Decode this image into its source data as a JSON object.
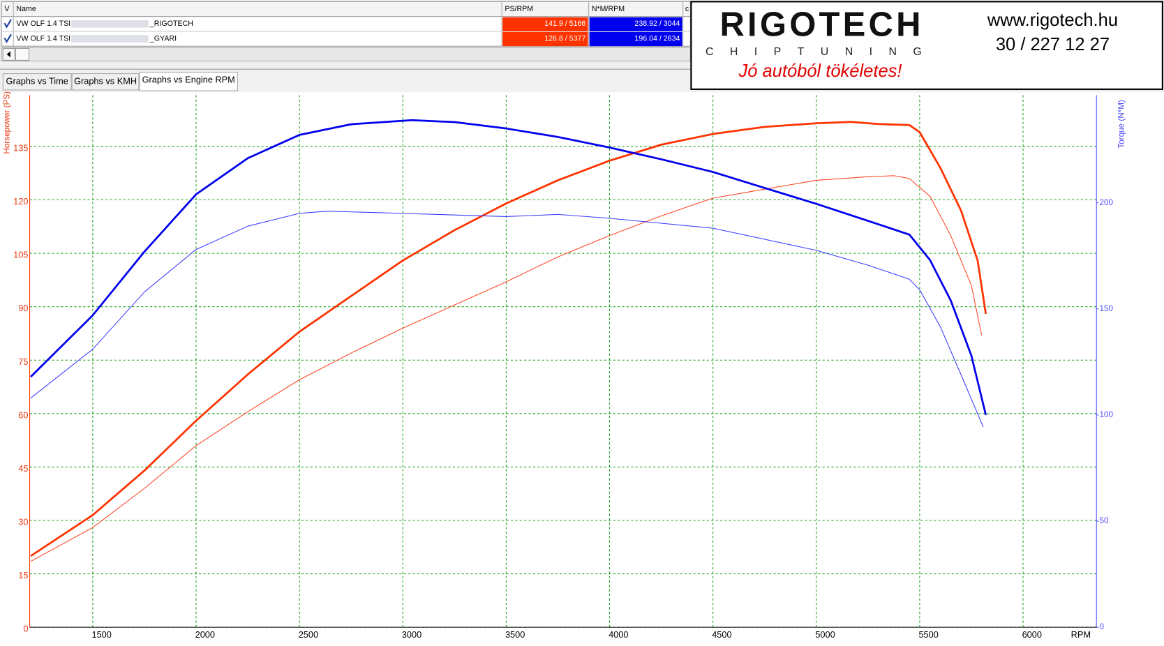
{
  "table": {
    "columns": [
      "V",
      "Name",
      "PS/RPM",
      "N*M/RPM",
      "c"
    ],
    "rows": [
      {
        "name": "VW OLF 1.4 TSI",
        "suffix": "_RIGOTECH",
        "ps": "141.9 / 5166",
        "torque": "238.92 / 3044"
      },
      {
        "name": "VW OLF 1.4 TSI",
        "suffix": "_GYARI",
        "ps": "126.8 / 5377",
        "torque": "196.04 / 2634"
      }
    ]
  },
  "tabs": [
    "Graphs vs Time",
    "Graphs vs KMH",
    "Graphs vs Engine RPM"
  ],
  "logo": {
    "brand": "RIGOTECH",
    "sub": "CHIPTUNING",
    "slogan": "Jó autóból tökéletes!",
    "web": "www.rigotech.hu",
    "phone": "30 / 227 12 27"
  },
  "chart_data": {
    "type": "line",
    "xlabel": "RPM",
    "ylabel": "Horsepower (PS)",
    "y2label": "Torque (N*M)",
    "xlim": [
      1195,
      6355
    ],
    "xticks": [
      1500,
      2000,
      2500,
      3000,
      3500,
      4000,
      4500,
      5000,
      5500,
      6000
    ],
    "ylim": [
      0,
      149.4
    ],
    "yticks": [
      0,
      15,
      30,
      45,
      60,
      75,
      90,
      105,
      120,
      135
    ],
    "y2lim": [
      0,
      250.7
    ],
    "y2ticks": [
      0,
      50,
      100,
      150,
      200
    ],
    "grid": true,
    "series": [
      {
        "color": "#ff3300",
        "line_width": 2.6,
        "x": [
          1200,
          1500,
          1750,
          2000,
          2250,
          2500,
          2750,
          3000,
          3250,
          3500,
          3750,
          4000,
          4250,
          4500,
          4750,
          5000,
          5166,
          5300,
          5450,
          5500,
          5600,
          5700,
          5780,
          5820
        ],
        "values": [
          20,
          31.5,
          44,
          58,
          71,
          83,
          93,
          103,
          111.5,
          119,
          125.5,
          131,
          135.5,
          138.5,
          140.5,
          141.5,
          141.9,
          141.3,
          141,
          139,
          129,
          117,
          103,
          88
        ]
      },
      {
        "color": "#ff4422",
        "line_width": 1,
        "x": [
          1200,
          1500,
          1750,
          2000,
          2250,
          2500,
          2750,
          3000,
          3250,
          3500,
          3750,
          4000,
          4250,
          4500,
          4750,
          5000,
          5250,
          5377,
          5450,
          5550,
          5650,
          5750,
          5800
        ],
        "values": [
          18.5,
          28,
          39,
          51,
          60.5,
          69.5,
          77,
          84,
          90.5,
          97,
          104,
          110,
          115.5,
          120.5,
          123,
          125.5,
          126.5,
          126.8,
          126,
          121,
          110,
          96,
          82
        ]
      },
      {
        "color": "#0000ee",
        "line_width": 2.6,
        "axis": "y2",
        "x": [
          1200,
          1500,
          1750,
          2000,
          2250,
          2500,
          2750,
          3044,
          3250,
          3500,
          3750,
          4000,
          4250,
          4500,
          4750,
          5000,
          5250,
          5450,
          5550,
          5650,
          5750,
          5820
        ],
        "values": [
          118,
          147,
          177,
          204,
          221,
          232,
          237,
          238.92,
          238,
          235,
          231,
          226,
          220.5,
          214.5,
          207,
          199.5,
          191.5,
          185,
          173,
          154,
          128,
          100
        ]
      },
      {
        "color": "#3a3aff",
        "line_width": 1,
        "axis": "y2",
        "x": [
          1200,
          1500,
          1750,
          2000,
          2250,
          2500,
          2634,
          3000,
          3500,
          3750,
          4000,
          4500,
          5000,
          5250,
          5450,
          5500,
          5600,
          5700,
          5807
        ],
        "values": [
          108,
          131,
          158,
          178,
          189,
          195,
          196.04,
          195,
          193.5,
          194.5,
          192.7,
          188,
          177.6,
          170.6,
          164,
          159,
          141.6,
          119,
          94.4
        ]
      }
    ]
  }
}
